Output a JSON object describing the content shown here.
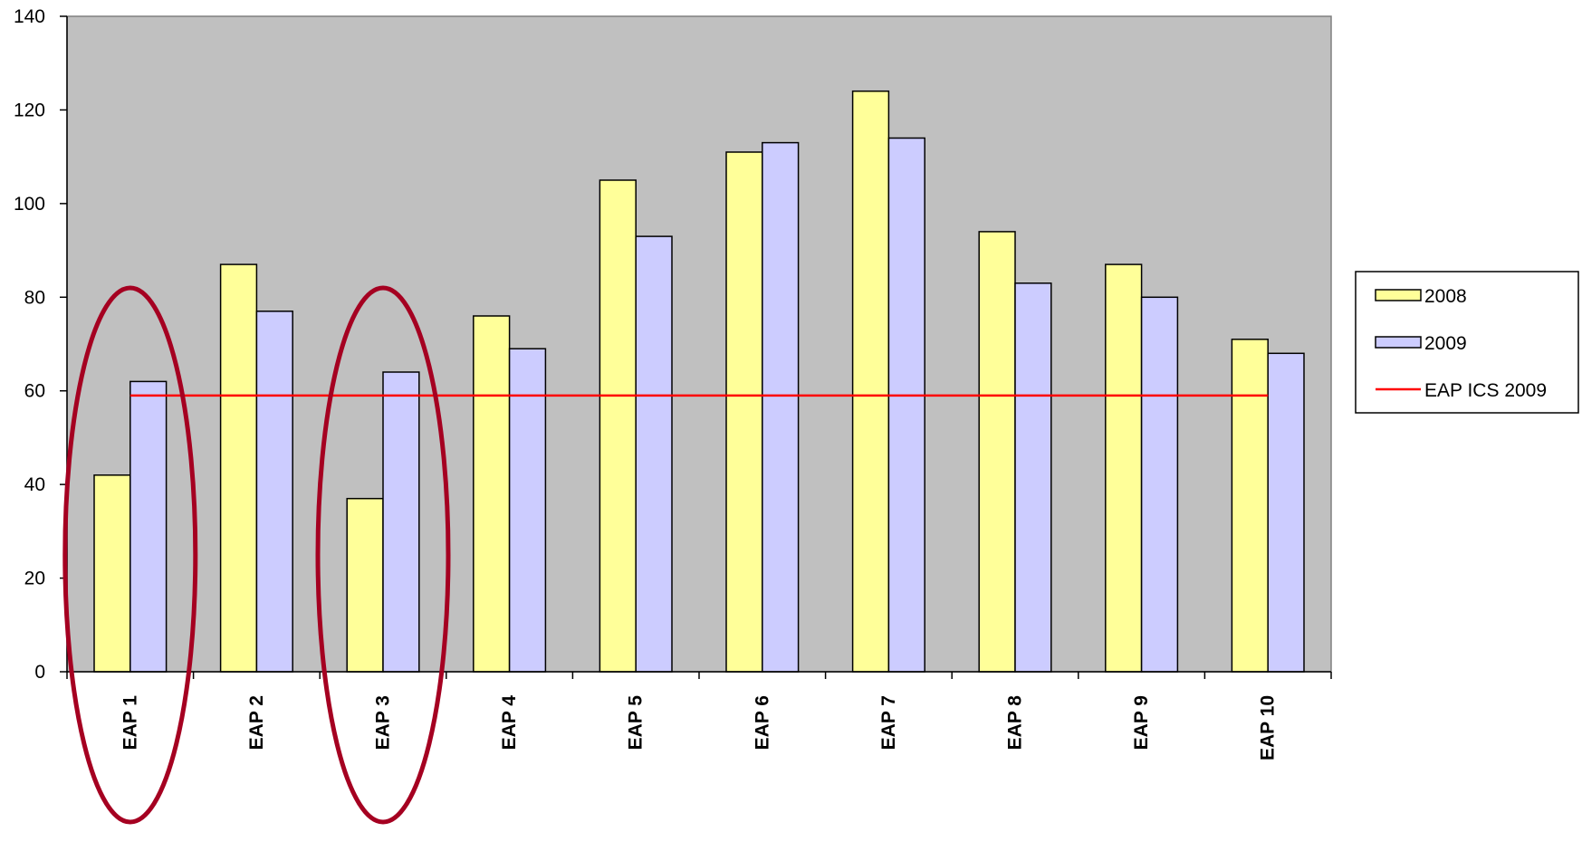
{
  "chart_data": {
    "type": "bar",
    "title": "",
    "xlabel": "",
    "ylabel": "",
    "ylim": [
      0,
      140
    ],
    "yticks": [
      0,
      20,
      40,
      60,
      80,
      100,
      120,
      140
    ],
    "categories": [
      "EAP 1",
      "EAP 2",
      "EAP 3",
      "EAP 4",
      "EAP 5",
      "EAP 6",
      "EAP 7",
      "EAP 8",
      "EAP 9",
      "EAP 10"
    ],
    "series": [
      {
        "name": "2008",
        "values": [
          42,
          87,
          37,
          76,
          105,
          111,
          124,
          94,
          87,
          71
        ],
        "color": "#FFFF99"
      },
      {
        "name": "2009",
        "values": [
          62,
          77,
          64,
          69,
          93,
          113,
          114,
          83,
          80,
          68
        ],
        "color": "#CCCCFF"
      }
    ],
    "reference_line": {
      "name": "EAP ICS 2009",
      "value": 59,
      "color": "#FF0000"
    },
    "highlighted_categories": [
      "EAP 1",
      "EAP 3"
    ],
    "highlight_color": "#A50021",
    "plot_background": "#C0C0C0",
    "grid": false,
    "legend_position": "right"
  }
}
